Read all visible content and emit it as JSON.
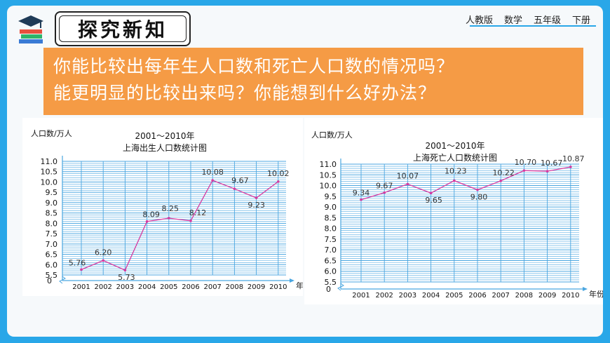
{
  "header": {
    "section_title": "探究新知",
    "tags": [
      "人教版",
      "数学",
      "五年级",
      "下册"
    ]
  },
  "question": {
    "line1": "你能比较出每年生人口数和死亡人口数的情况吗？",
    "line2": "能更明显的比较出来吗？你能想到什么好办法？"
  },
  "colors": {
    "background": "#29a7e8",
    "question_bg": "#f59b45",
    "grid": "#4aa6e0",
    "line": "#d63aa0"
  },
  "chart_data": [
    {
      "type": "line",
      "title": "2001～2010年",
      "subtitle": "上海出生人口数统计图",
      "ylabel": "人口数/万人",
      "xlabel": "年份",
      "categories": [
        "2001",
        "2002",
        "2003",
        "2004",
        "2005",
        "2006",
        "2007",
        "2008",
        "2009",
        "2010"
      ],
      "values": [
        5.76,
        6.2,
        5.73,
        8.09,
        8.25,
        8.12,
        10.08,
        9.67,
        9.23,
        10.02
      ],
      "value_labels": [
        "5.76",
        "6.20",
        "5.73",
        "8.09",
        "8.25",
        "8.12",
        "10.08",
        "9.67",
        "9.23",
        "10.02"
      ],
      "yticks": [
        "5.5",
        "6.0",
        "6.5",
        "7.0",
        "7.5",
        "8.0",
        "8.5",
        "9.0",
        "9.5",
        "10.0",
        "10.5",
        "11.0"
      ],
      "ylim": [
        5.5,
        11.0
      ],
      "y_origin_label": "0",
      "grid": true
    },
    {
      "type": "line",
      "title": "2001～2010年",
      "subtitle": "上海死亡人口数统计图",
      "ylabel": "人口数/万人",
      "xlabel": "年份",
      "categories": [
        "2001",
        "2002",
        "2003",
        "2004",
        "2005",
        "2006",
        "2007",
        "2008",
        "2009",
        "2010"
      ],
      "values": [
        9.34,
        9.67,
        10.07,
        9.65,
        10.23,
        9.8,
        10.22,
        10.7,
        10.67,
        10.87
      ],
      "value_labels": [
        "9.34",
        "9.67",
        "10.07",
        "9.65",
        "10.23",
        "9.80",
        "10.22",
        "10.70",
        "10.67",
        "10.87"
      ],
      "yticks": [
        "5.5",
        "6.0",
        "6.5",
        "7.0",
        "7.5",
        "8.0",
        "8.5",
        "9.0",
        "9.5",
        "10.0",
        "10.5",
        "11.0"
      ],
      "ylim": [
        5.5,
        11.0
      ],
      "y_origin_label": "0",
      "grid": true
    }
  ]
}
